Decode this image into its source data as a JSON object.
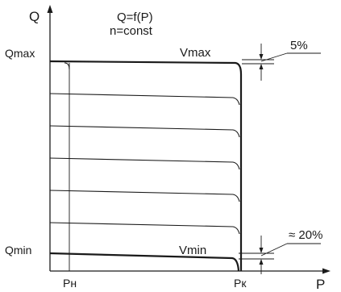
{
  "axes": {
    "y_label": "Q",
    "x_label": "P"
  },
  "header": {
    "formula": "Q=f(P)",
    "condition": "n=const"
  },
  "labels": {
    "q_max": "Qmax",
    "q_min": "Qmin",
    "v_max": "Vmax",
    "v_min": "Vmin",
    "p_n": "Pн",
    "p_k": "Pк"
  },
  "annotations": {
    "top_tolerance": "5%",
    "bottom_tolerance": "≈ 20%"
  },
  "curves": {
    "intermediate_count": 5
  }
}
